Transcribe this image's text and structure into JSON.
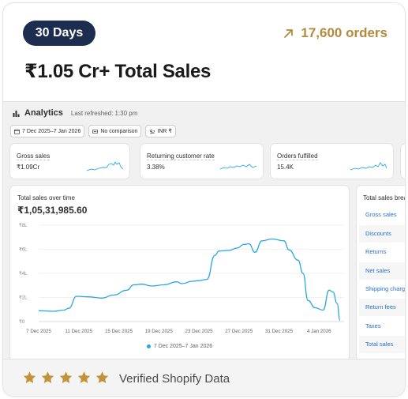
{
  "header": {
    "period_badge": "30 Days",
    "orders_label": "17,600 orders",
    "headline": "₹1.05 Cr+ Total Sales"
  },
  "analytics": {
    "title": "Analytics",
    "last_refreshed": "Last refreshed: 1:30 pm",
    "filters": {
      "date_range": "7 Dec 2025–7 Jan 2026",
      "comparison": "No comparison",
      "currency": "INR ₹"
    },
    "metrics": [
      {
        "label": "Gross sales",
        "value": "₹1.09Cr"
      },
      {
        "label": "Returning customer rate",
        "value": "3.38%"
      },
      {
        "label": "Orders fulfilled",
        "value": "15.4K"
      }
    ],
    "sales_chart": {
      "title": "Total sales over time",
      "total": "₹1,05,31,985.60",
      "legend": "7 Dec 2025–7 Jan 2026"
    },
    "breakdown": {
      "title": "Total sales breakdown",
      "items": [
        "Gross sales",
        "Discounts",
        "Returns",
        "Net sales",
        "Shipping charges",
        "Return fees",
        "Taxes",
        "Total sales"
      ]
    }
  },
  "footer": {
    "rating_stars": 5,
    "verified_text": "Verified Shopify Data"
  },
  "colors": {
    "badge_bg": "#1c2d4f",
    "accent_gold": "#b48a3d",
    "line_blue": "#29a8e0",
    "link_blue": "#2c6ecb",
    "star_gold": "#c4923a"
  },
  "chart_data": {
    "type": "line",
    "title": "Total sales over time",
    "xlabel": "",
    "ylabel": "",
    "y_tick_labels": [
      "₹0",
      "₹2L",
      "₹4L",
      "₹6L",
      "₹8L"
    ],
    "y_ticks": [
      0,
      2,
      4,
      6,
      8
    ],
    "ylim": [
      0,
      8
    ],
    "y_unit": "lakh ₹",
    "x_tick_labels": [
      "7 Dec 2025",
      "11 Dec 2025",
      "15 Dec 2025",
      "19 Dec 2025",
      "23 Dec 2025",
      "27 Dec 2025",
      "31 Dec 2025",
      "4 Jan 2026"
    ],
    "x_tick_days": [
      0,
      4,
      8,
      12,
      16,
      20,
      24,
      28
    ],
    "grid": true,
    "legend_position": "bottom",
    "series": [
      {
        "name": "7 Dec 2025–7 Jan 2026",
        "x_days": [
          0,
          1.5,
          2.5,
          3,
          3.8,
          5,
          6.3,
          7.5,
          8.8,
          9.5,
          10.3,
          11.3,
          12.5,
          13.8,
          14.3,
          15.4,
          16,
          16.8,
          17.6,
          18,
          19,
          19.8,
          20.5,
          21,
          21.6,
          22.3,
          23.3,
          24.5,
          25,
          25.9,
          26.4,
          26.9,
          27.6,
          28.4,
          29,
          29.4,
          29.8,
          30.1
        ],
        "values": [
          0.9,
          0.85,
          0.95,
          1.1,
          2.1,
          2.05,
          1.95,
          2.2,
          2.6,
          3.05,
          3.1,
          2.95,
          3.05,
          3.3,
          3.15,
          3.35,
          3.4,
          3.5,
          5.5,
          5.85,
          5.9,
          6.1,
          6.4,
          6.45,
          5.75,
          6.7,
          6.85,
          6.7,
          5.95,
          5.1,
          4.0,
          1.75,
          1.15,
          0.95,
          2.6,
          2.45,
          1.5,
          0.1
        ]
      }
    ]
  }
}
